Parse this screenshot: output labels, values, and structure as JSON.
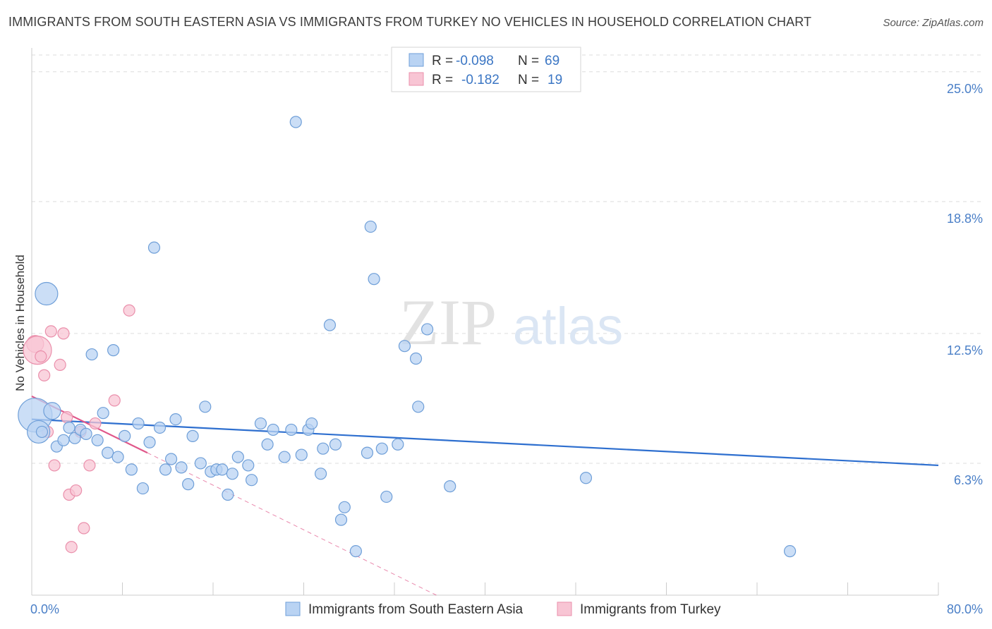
{
  "title": "IMMIGRANTS FROM SOUTH EASTERN ASIA VS IMMIGRANTS FROM TURKEY NO VEHICLES IN HOUSEHOLD CORRELATION CHART",
  "source": "Source: ZipAtlas.com",
  "watermark": {
    "zip": "ZIP",
    "atlas": "atlas"
  },
  "colors": {
    "blue_fill": "#b9d3f3",
    "blue_stroke": "#6f9fd8",
    "blue_line": "#2e6fcf",
    "pink_fill": "#f8c5d4",
    "pink_stroke": "#ea8fab",
    "pink_line": "#e0578a",
    "grid": "#dddddd",
    "tick_text": "#4a7fc7"
  },
  "legend": {
    "rows": [
      {
        "r_label": "R = ",
        "r_value": "-0.098",
        "n_label": "N = ",
        "n_value": "69",
        "series": "blue"
      },
      {
        "r_label": "R = ",
        "r_value": "-0.182",
        "n_label": "N = ",
        "n_value": "19",
        "series": "pink"
      }
    ]
  },
  "chart_data": {
    "type": "scatter",
    "title": "IMMIGRANTS FROM SOUTH EASTERN ASIA VS IMMIGRANTS FROM TURKEY NO VEHICLES IN HOUSEHOLD CORRELATION CHART",
    "xlabel": "",
    "ylabel": "No Vehicles in Household",
    "xlim": [
      0,
      80
    ],
    "ylim": [
      0,
      25.8
    ],
    "x_tick_labels": [
      "0.0%",
      "80.0%"
    ],
    "y_ticks": [
      6.3,
      12.5,
      18.8,
      25.0
    ],
    "y_tick_labels": [
      "6.3%",
      "12.5%",
      "18.8%",
      "25.0%"
    ],
    "grid": true,
    "series": [
      {
        "name": "Immigrants from South Eastern Asia",
        "color": "blue",
        "points": [
          {
            "x": 0.3,
            "y": 8.6,
            "s": 3
          },
          {
            "x": 0.6,
            "y": 7.8,
            "s": 2
          },
          {
            "x": 1.3,
            "y": 14.4,
            "s": 2
          },
          {
            "x": 1.8,
            "y": 8.8,
            "s": 1.5
          },
          {
            "x": 2.2,
            "y": 7.1,
            "s": 1
          },
          {
            "x": 2.8,
            "y": 7.4,
            "s": 1
          },
          {
            "x": 3.3,
            "y": 8.0,
            "s": 1
          },
          {
            "x": 3.8,
            "y": 7.5,
            "s": 1
          },
          {
            "x": 4.3,
            "y": 7.9,
            "s": 1
          },
          {
            "x": 4.8,
            "y": 7.7,
            "s": 1
          },
          {
            "x": 5.3,
            "y": 11.5,
            "s": 1
          },
          {
            "x": 5.8,
            "y": 7.4,
            "s": 1
          },
          {
            "x": 6.3,
            "y": 8.7,
            "s": 1
          },
          {
            "x": 6.7,
            "y": 6.8,
            "s": 1
          },
          {
            "x": 7.2,
            "y": 11.7,
            "s": 1
          },
          {
            "x": 7.6,
            "y": 6.6,
            "s": 1
          },
          {
            "x": 8.2,
            "y": 7.6,
            "s": 1
          },
          {
            "x": 8.8,
            "y": 6.0,
            "s": 1
          },
          {
            "x": 9.4,
            "y": 8.2,
            "s": 1
          },
          {
            "x": 9.8,
            "y": 5.1,
            "s": 1
          },
          {
            "x": 10.4,
            "y": 7.3,
            "s": 1
          },
          {
            "x": 10.8,
            "y": 16.6,
            "s": 1
          },
          {
            "x": 11.3,
            "y": 8.0,
            "s": 1
          },
          {
            "x": 11.8,
            "y": 6.0,
            "s": 1
          },
          {
            "x": 12.3,
            "y": 6.5,
            "s": 1
          },
          {
            "x": 12.7,
            "y": 8.4,
            "s": 1
          },
          {
            "x": 13.2,
            "y": 6.1,
            "s": 1
          },
          {
            "x": 13.8,
            "y": 5.3,
            "s": 1
          },
          {
            "x": 14.2,
            "y": 7.6,
            "s": 1
          },
          {
            "x": 14.9,
            "y": 6.3,
            "s": 1
          },
          {
            "x": 15.3,
            "y": 9.0,
            "s": 1
          },
          {
            "x": 15.8,
            "y": 5.9,
            "s": 1
          },
          {
            "x": 16.3,
            "y": 6.0,
            "s": 1
          },
          {
            "x": 16.8,
            "y": 6.0,
            "s": 1
          },
          {
            "x": 17.3,
            "y": 4.8,
            "s": 1
          },
          {
            "x": 17.7,
            "y": 5.8,
            "s": 1
          },
          {
            "x": 18.2,
            "y": 6.6,
            "s": 1
          },
          {
            "x": 19.1,
            "y": 6.2,
            "s": 1
          },
          {
            "x": 19.4,
            "y": 5.5,
            "s": 1
          },
          {
            "x": 20.2,
            "y": 8.2,
            "s": 1
          },
          {
            "x": 20.8,
            "y": 7.2,
            "s": 1
          },
          {
            "x": 21.3,
            "y": 7.9,
            "s": 1
          },
          {
            "x": 22.3,
            "y": 6.6,
            "s": 1
          },
          {
            "x": 22.9,
            "y": 7.9,
            "s": 1
          },
          {
            "x": 23.3,
            "y": 22.6,
            "s": 1
          },
          {
            "x": 23.8,
            "y": 6.7,
            "s": 1
          },
          {
            "x": 24.4,
            "y": 7.9,
            "s": 1
          },
          {
            "x": 24.7,
            "y": 8.2,
            "s": 1
          },
          {
            "x": 25.5,
            "y": 5.8,
            "s": 1
          },
          {
            "x": 25.7,
            "y": 7.0,
            "s": 1
          },
          {
            "x": 26.3,
            "y": 12.9,
            "s": 1
          },
          {
            "x": 26.8,
            "y": 7.2,
            "s": 1
          },
          {
            "x": 27.3,
            "y": 3.6,
            "s": 1
          },
          {
            "x": 27.6,
            "y": 4.2,
            "s": 1
          },
          {
            "x": 28.6,
            "y": 2.1,
            "s": 1
          },
          {
            "x": 29.6,
            "y": 6.8,
            "s": 1
          },
          {
            "x": 29.9,
            "y": 17.6,
            "s": 1
          },
          {
            "x": 30.2,
            "y": 15.1,
            "s": 1
          },
          {
            "x": 30.9,
            "y": 7.0,
            "s": 1
          },
          {
            "x": 31.3,
            "y": 4.7,
            "s": 1
          },
          {
            "x": 32.3,
            "y": 7.2,
            "s": 1
          },
          {
            "x": 32.9,
            "y": 11.9,
            "s": 1
          },
          {
            "x": 33.9,
            "y": 11.3,
            "s": 1
          },
          {
            "x": 34.1,
            "y": 9.0,
            "s": 1
          },
          {
            "x": 34.9,
            "y": 12.7,
            "s": 1
          },
          {
            "x": 36.9,
            "y": 5.2,
            "s": 1
          },
          {
            "x": 48.9,
            "y": 5.6,
            "s": 1
          },
          {
            "x": 66.9,
            "y": 2.1,
            "s": 1
          },
          {
            "x": 0.9,
            "y": 7.8,
            "s": 1
          }
        ],
        "trend": {
          "x": [
            0,
            80
          ],
          "y": [
            8.4,
            6.2
          ]
        }
      },
      {
        "name": "Immigrants from Turkey",
        "color": "pink",
        "points": [
          {
            "x": 0.3,
            "y": 12.0,
            "s": 1.5
          },
          {
            "x": 0.5,
            "y": 11.7,
            "s": 2.5
          },
          {
            "x": 0.8,
            "y": 11.4,
            "s": 1
          },
          {
            "x": 1.1,
            "y": 10.5,
            "s": 1
          },
          {
            "x": 1.4,
            "y": 7.8,
            "s": 1
          },
          {
            "x": 1.7,
            "y": 12.6,
            "s": 1
          },
          {
            "x": 2.0,
            "y": 6.2,
            "s": 1
          },
          {
            "x": 2.5,
            "y": 11.0,
            "s": 1
          },
          {
            "x": 2.8,
            "y": 12.5,
            "s": 1
          },
          {
            "x": 3.1,
            "y": 8.5,
            "s": 1
          },
          {
            "x": 3.3,
            "y": 4.8,
            "s": 1
          },
          {
            "x": 3.5,
            "y": 2.3,
            "s": 1
          },
          {
            "x": 3.9,
            "y": 5.0,
            "s": 1
          },
          {
            "x": 4.3,
            "y": 7.8,
            "s": 1
          },
          {
            "x": 4.6,
            "y": 3.2,
            "s": 1
          },
          {
            "x": 5.1,
            "y": 6.2,
            "s": 1
          },
          {
            "x": 5.6,
            "y": 8.2,
            "s": 1
          },
          {
            "x": 7.3,
            "y": 9.3,
            "s": 1
          },
          {
            "x": 8.6,
            "y": 13.6,
            "s": 1
          }
        ],
        "trend": {
          "x": [
            0,
            10.2
          ],
          "y": [
            9.5,
            6.8
          ]
        },
        "trend_extension": {
          "x": [
            10.2,
            35.7
          ],
          "y": [
            6.8,
            0
          ]
        }
      }
    ]
  }
}
